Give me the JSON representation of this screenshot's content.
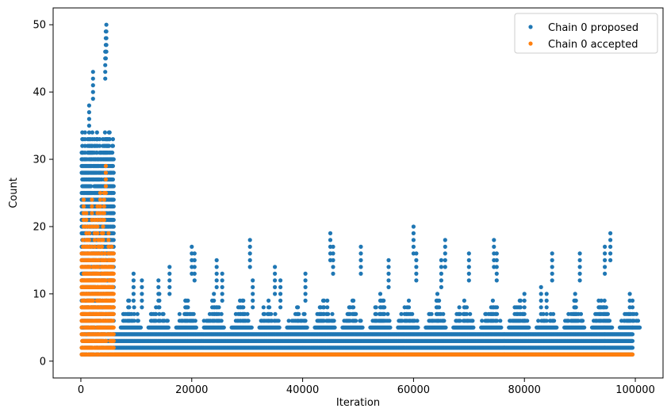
{
  "chart_data": {
    "type": "scatter",
    "title": "",
    "xlabel": "Iteration",
    "ylabel": "Count",
    "xlim": [
      -5000,
      105000
    ],
    "ylim": [
      -2.5,
      52.5
    ],
    "x_ticks": [
      0,
      20000,
      40000,
      60000,
      80000,
      100000
    ],
    "y_ticks": [
      0,
      10,
      20,
      30,
      40,
      50
    ],
    "legend_position": "top-right",
    "grid": false,
    "series": [
      {
        "name": "Chain 0 proposed",
        "color": "#1f77b4",
        "marker": "circle",
        "description_of_distribution": "burn-in region x 0-6000 dense at counts 1-35, peak 50 near x 4500; after x 6000 dense band at counts 1-4 with sparse spikes",
        "band_segments": [
          {
            "x_start": 0,
            "x_end": 6000,
            "y_min": 1,
            "y_max": 34
          },
          {
            "x_start": 6000,
            "x_end": 99500,
            "y_min": 1,
            "y_max": 4
          }
        ],
        "peaks": [
          {
            "x": 2200,
            "y": 43
          },
          {
            "x": 1500,
            "y": 38
          },
          {
            "x": 4400,
            "y": 46
          },
          {
            "x": 4500,
            "y": 49
          },
          {
            "x": 4600,
            "y": 50
          },
          {
            "x": 9500,
            "y": 13
          },
          {
            "x": 11000,
            "y": 12
          },
          {
            "x": 14000,
            "y": 12
          },
          {
            "x": 16000,
            "y": 14
          },
          {
            "x": 20000,
            "y": 17
          },
          {
            "x": 20500,
            "y": 16
          },
          {
            "x": 24500,
            "y": 15
          },
          {
            "x": 25500,
            "y": 13
          },
          {
            "x": 30500,
            "y": 18
          },
          {
            "x": 31000,
            "y": 12
          },
          {
            "x": 35000,
            "y": 14
          },
          {
            "x": 36000,
            "y": 12
          },
          {
            "x": 40500,
            "y": 13
          },
          {
            "x": 45000,
            "y": 19
          },
          {
            "x": 45500,
            "y": 17
          },
          {
            "x": 50500,
            "y": 17
          },
          {
            "x": 55500,
            "y": 15
          },
          {
            "x": 60000,
            "y": 20
          },
          {
            "x": 60500,
            "y": 16
          },
          {
            "x": 65000,
            "y": 15
          },
          {
            "x": 65700,
            "y": 18
          },
          {
            "x": 70000,
            "y": 16
          },
          {
            "x": 74500,
            "y": 18
          },
          {
            "x": 75000,
            "y": 16
          },
          {
            "x": 80000,
            "y": 10
          },
          {
            "x": 83000,
            "y": 11
          },
          {
            "x": 85000,
            "y": 16
          },
          {
            "x": 90000,
            "y": 16
          },
          {
            "x": 94500,
            "y": 17
          },
          {
            "x": 95500,
            "y": 19
          },
          {
            "x": 99500,
            "y": 9
          }
        ]
      },
      {
        "name": "Chain 0 accepted",
        "color": "#ff7f0e",
        "marker": "circle",
        "description_of_distribution": "burn-in region x 0-6000 dense at counts 1-18 with scattered points up to 29; after x 6000 constant line at count 1",
        "band_segments": [
          {
            "x_start": 0,
            "x_end": 6000,
            "y_min": 1,
            "y_max": 18
          },
          {
            "x_start": 6000,
            "x_end": 99500,
            "y_min": 1,
            "y_max": 1
          }
        ],
        "peaks": [
          {
            "x": 4500,
            "y": 29
          },
          {
            "x": 3500,
            "y": 25
          },
          {
            "x": 4200,
            "y": 25
          },
          {
            "x": 500,
            "y": 24
          },
          {
            "x": 2000,
            "y": 24
          },
          {
            "x": 3000,
            "y": 23
          },
          {
            "x": 1000,
            "y": 22
          },
          {
            "x": 4000,
            "y": 22
          },
          {
            "x": 2500,
            "y": 21
          },
          {
            "x": 1500,
            "y": 20
          },
          {
            "x": 3800,
            "y": 19
          },
          {
            "x": 5000,
            "y": 19
          }
        ]
      }
    ]
  }
}
